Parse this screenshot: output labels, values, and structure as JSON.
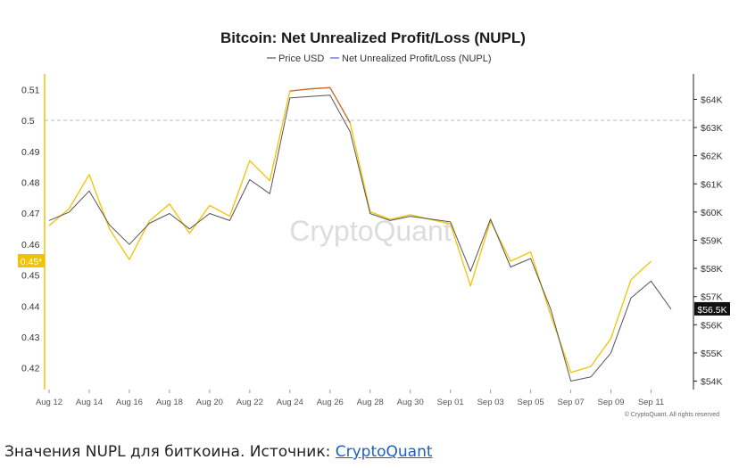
{
  "chart_data": {
    "type": "line",
    "title": "Bitcoin: Net Unrealized Profit/Loss (NUPL)",
    "watermark": "CryptoQuant",
    "copyright": "© CryptoQuant. All rights reserved",
    "legend": {
      "placement": "top-center",
      "entries": [
        "Price USD",
        "Net Unrealized Profit/Loss (NUPL)"
      ]
    },
    "colors": {
      "price": "#555555",
      "nupl": "#f2c300",
      "nupl_legend": "#5b5bd6",
      "price_badge": "#111111",
      "nupl_badge": "#f2c300",
      "nupl_segment_high": "#c96a3a"
    },
    "x_ticks": [
      "Aug 12",
      "Aug 14",
      "Aug 16",
      "Aug 18",
      "Aug 20",
      "Aug 22",
      "Aug 24",
      "Aug 26",
      "Aug 28",
      "Aug 30",
      "Sep 01",
      "Sep 03",
      "Sep 05",
      "Sep 07",
      "Sep 09",
      "Sep 11"
    ],
    "y_left": {
      "ticks": [
        "0.42",
        "0.43",
        "0.44",
        "0.45",
        "0.46",
        "0.47",
        "0.48",
        "0.49",
        "0.5",
        "0.51"
      ],
      "range": [
        0.413,
        0.515
      ],
      "reference_line": 0.5
    },
    "y_right": {
      "ticks": [
        "$54K",
        "$55K",
        "$56K",
        "$57K",
        "$58K",
        "$59K",
        "$60K",
        "$61K",
        "$62K",
        "$63K",
        "$64K"
      ],
      "range": [
        53700,
        64900
      ]
    },
    "current_labels": {
      "nupl": "0.45*",
      "price": "$56.5K"
    },
    "x_day_range": [
      0,
      31
    ],
    "series": [
      {
        "name": "Price USD",
        "axis": "right",
        "points": [
          [
            0,
            59700
          ],
          [
            1,
            60000
          ],
          [
            2,
            60750
          ],
          [
            3,
            59550
          ],
          [
            4,
            58850
          ],
          [
            5,
            59600
          ],
          [
            6,
            59950
          ],
          [
            7,
            59400
          ],
          [
            8,
            59950
          ],
          [
            9,
            59700
          ],
          [
            10,
            61150
          ],
          [
            11,
            60650
          ],
          [
            12,
            64050
          ],
          [
            13,
            64100
          ],
          [
            14,
            64150
          ],
          [
            15,
            62850
          ],
          [
            16,
            59950
          ],
          [
            17,
            59700
          ],
          [
            18,
            59850
          ],
          [
            19,
            59750
          ],
          [
            20,
            59650
          ],
          [
            21,
            57900
          ],
          [
            22,
            59750
          ],
          [
            23,
            58050
          ],
          [
            24,
            58350
          ],
          [
            25,
            56550
          ],
          [
            26,
            54000
          ],
          [
            27,
            54150
          ],
          [
            28,
            55000
          ],
          [
            29,
            56950
          ],
          [
            30,
            57550
          ],
          [
            31,
            56550
          ]
        ]
      },
      {
        "name": "Net Unrealized Profit/Loss (NUPL)",
        "axis": "left",
        "points": [
          [
            0,
            0.466
          ],
          [
            1,
            0.4715
          ],
          [
            2,
            0.4825
          ],
          [
            3,
            0.465
          ],
          [
            4,
            0.455
          ],
          [
            5,
            0.4675
          ],
          [
            6,
            0.473
          ],
          [
            7,
            0.4635
          ],
          [
            8,
            0.4725
          ],
          [
            9,
            0.469
          ],
          [
            10,
            0.487
          ],
          [
            11,
            0.4805
          ],
          [
            12,
            0.5095
          ],
          [
            13,
            0.5102
          ],
          [
            14,
            0.5106
          ],
          [
            15,
            0.4992
          ],
          [
            16,
            0.4705
          ],
          [
            17,
            0.468
          ],
          [
            18,
            0.4695
          ],
          [
            19,
            0.468
          ],
          [
            20,
            0.4665
          ],
          [
            21,
            0.4465
          ],
          [
            22,
            0.4675
          ],
          [
            23,
            0.4545
          ],
          [
            24,
            0.4575
          ],
          [
            25,
            0.437
          ],
          [
            26,
            0.4185
          ],
          [
            27,
            0.4205
          ],
          [
            28,
            0.4295
          ],
          [
            29,
            0.4485
          ],
          [
            30,
            0.4545
          ]
        ]
      }
    ]
  },
  "caption": {
    "text": "Значения NUPL для биткоина. Источник: ",
    "link": "CryptoQuant"
  }
}
